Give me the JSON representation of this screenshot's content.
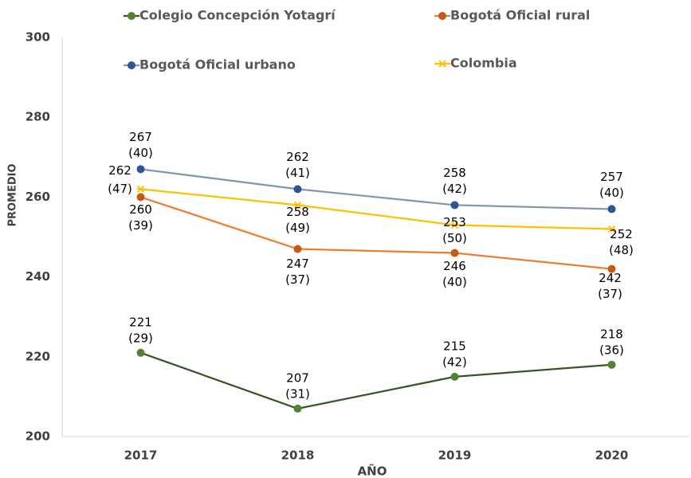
{
  "chart_data": {
    "type": "line",
    "categories": [
      "2017",
      "2018",
      "2019",
      "2020"
    ],
    "series": [
      {
        "name": "Colegio Concepción Yotagrí",
        "color": "#375623",
        "marker_color": "#548235",
        "values": [
          221,
          207,
          215,
          218
        ],
        "deviation_labels": [
          "(29)",
          "(31)",
          "(42)",
          "(36)"
        ]
      },
      {
        "name": "Bogotá Oficial rural",
        "color": "#ED7D31",
        "marker_color": "#C55A11",
        "values": [
          260,
          247,
          246,
          242
        ],
        "deviation_labels": [
          "(39)",
          "(37)",
          "(40)",
          "(37)"
        ]
      },
      {
        "name": "Bogotá Oficial urbano",
        "color": "#8497B0",
        "marker_color": "#2F5597",
        "values": [
          267,
          262,
          258,
          257
        ],
        "deviation_labels": [
          "(40)",
          "(41)",
          "(42)",
          "(40)"
        ]
      },
      {
        "name": "Colombia",
        "color": "#FFC000",
        "marker_color": "#FFC000",
        "values": [
          262,
          258,
          253,
          252
        ],
        "deviation_labels": [
          "(47)",
          "(49)",
          "(50)",
          "(48)"
        ]
      }
    ],
    "ylim": [
      200,
      300
    ],
    "yticks": [
      200,
      220,
      240,
      260,
      280,
      300
    ],
    "xlabel": "AÑO",
    "ylabel": "PROMEDIO",
    "grid": false
  }
}
